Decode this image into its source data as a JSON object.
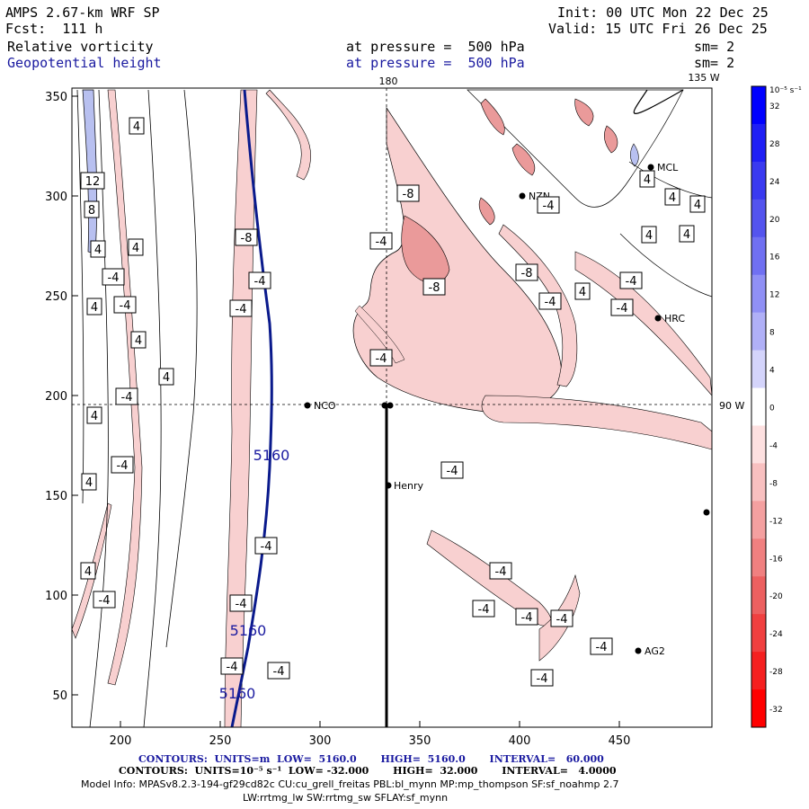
{
  "header": {
    "model": "AMPS 2.67-km WRF SP",
    "fcst": "Fcst:  111 h",
    "init": "Init: 00 UTC Mon 22 Dec 25",
    "valid": "Valid: 15 UTC Fri 26 Dec 25",
    "field1": {
      "name": "Relative vorticity",
      "level": "at pressure =  500 hPa",
      "sm": "sm= 2"
    },
    "field2": {
      "name": "Geopotential height",
      "level": "at pressure =  500 hPa",
      "sm": "sm= 2"
    }
  },
  "map": {
    "lon_labels": {
      "top_180": "180",
      "top_135w": "135 W",
      "right_90w": "90 W"
    },
    "x_ticks": [
      "200",
      "250",
      "300",
      "350",
      "400",
      "450"
    ],
    "y_ticks": [
      "50",
      "100",
      "150",
      "200",
      "250",
      "300",
      "350"
    ],
    "stations": [
      "NCO",
      "Henry",
      "HRC",
      "NZN",
      "AG2",
      "MCL"
    ],
    "height_labels": [
      "5160",
      "5160",
      "5160"
    ],
    "vorticity_labels": [
      "4",
      "-4",
      "-8",
      "8",
      "12"
    ]
  },
  "colorbar": {
    "unit": "10⁻⁵ s⁻¹",
    "ticks": [
      "32",
      "28",
      "24",
      "20",
      "16",
      "12",
      "8",
      "4",
      "0",
      "-4",
      "-8",
      "-12",
      "-16",
      "-20",
      "-24",
      "-28",
      "-32"
    ],
    "colors": [
      "#0000ff",
      "#1f1ff5",
      "#3a3af0",
      "#5454ee",
      "#7070f2",
      "#9090f5",
      "#b0b0f7",
      "#d4d4fb",
      "#ffffff",
      "#fde0e0",
      "#f8c0c0",
      "#f4a0a0",
      "#f08080",
      "#ec6060",
      "#f04040",
      "#f52020",
      "#ff0000"
    ]
  },
  "footer": {
    "c1": "CONTOURS:  UNITS=m  LOW=  5160.0       HIGH=  5160.0       INTERVAL=   60.000",
    "c2": "CONTOURS:  UNITS=10⁻⁵ s⁻¹  LOW= -32.000       HIGH=  32.000       INTERVAL=   4.0000",
    "info1": "Model Info: MPASv8.2.3-194-gf29cd82c CU:cu_grell_freitas PBL:bl_mynn MP:mp_thompson SF:sf_noahmp 2.7",
    "info2": "LW:rrtmg_lw SW:rrtmg_sw SFLAY:sf_mynn"
  },
  "palette": {
    "height_contour": "#0a1a8c",
    "neg_fill": "#f8d0d0",
    "neg_fill_strong": "#ea9a9a",
    "pos_fill": "#b8c0f0"
  }
}
